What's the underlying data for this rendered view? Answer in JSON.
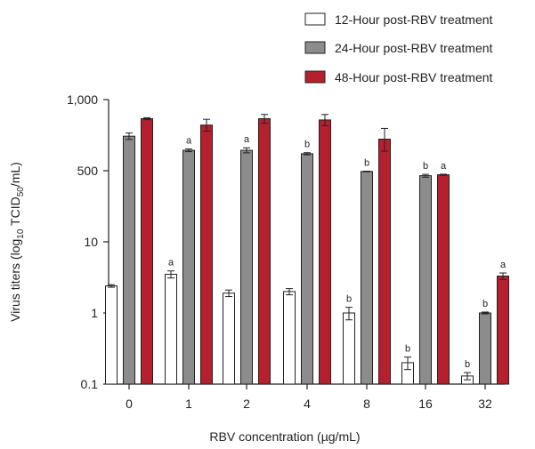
{
  "chart_data": {
    "type": "bar",
    "xlabel": "RBV concentration (µg/mL)",
    "ylabel": {
      "prefix": "Virus titers (log",
      "sub1": "10",
      "mid": " TCID",
      "sub2": "50",
      "suffix": "/mL)"
    },
    "y_scale": "log",
    "y_ticks": [
      {
        "value": 0.1,
        "label": "0.1"
      },
      {
        "value": 1,
        "label": "1"
      },
      {
        "value": 10,
        "label": "10"
      },
      {
        "value": 500,
        "label": "500"
      },
      {
        "value": 1000,
        "label": "1,000"
      }
    ],
    "legend_position": "top-right",
    "categories": [
      "0",
      "1",
      "2",
      "4",
      "8",
      "16",
      "32"
    ],
    "series": [
      {
        "name": "12-Hour post-RBV treatment",
        "color": "#ffffff",
        "values": [
          2.4,
          3.5,
          1.9,
          2.0,
          1.0,
          0.2,
          0.13
        ],
        "errors": [
          0.1,
          0.4,
          0.2,
          0.2,
          0.2,
          0.04,
          0.015
        ],
        "sig": [
          "",
          "a",
          "",
          "",
          "b",
          "b",
          "b"
        ]
      },
      {
        "name": "24-Hour post-RBV treatment",
        "color": "#8c8c8c",
        "values": [
          700,
          610,
          610,
          590,
          480,
          380,
          1.0
        ],
        "errors": [
          22,
          8,
          15,
          6,
          8,
          30,
          0.03
        ],
        "sig": [
          "",
          "a",
          "a",
          "b",
          "b",
          "b",
          "b"
        ]
      },
      {
        "name": "48-Hour post-RBV treatment",
        "color": "#b5202e",
        "values": [
          830,
          780,
          830,
          820,
          680,
          400,
          3.3
        ],
        "errors": [
          8,
          45,
          35,
          45,
          75,
          12,
          0.35
        ],
        "sig": [
          "",
          "",
          "",
          "",
          "",
          "a",
          "a"
        ]
      }
    ]
  }
}
